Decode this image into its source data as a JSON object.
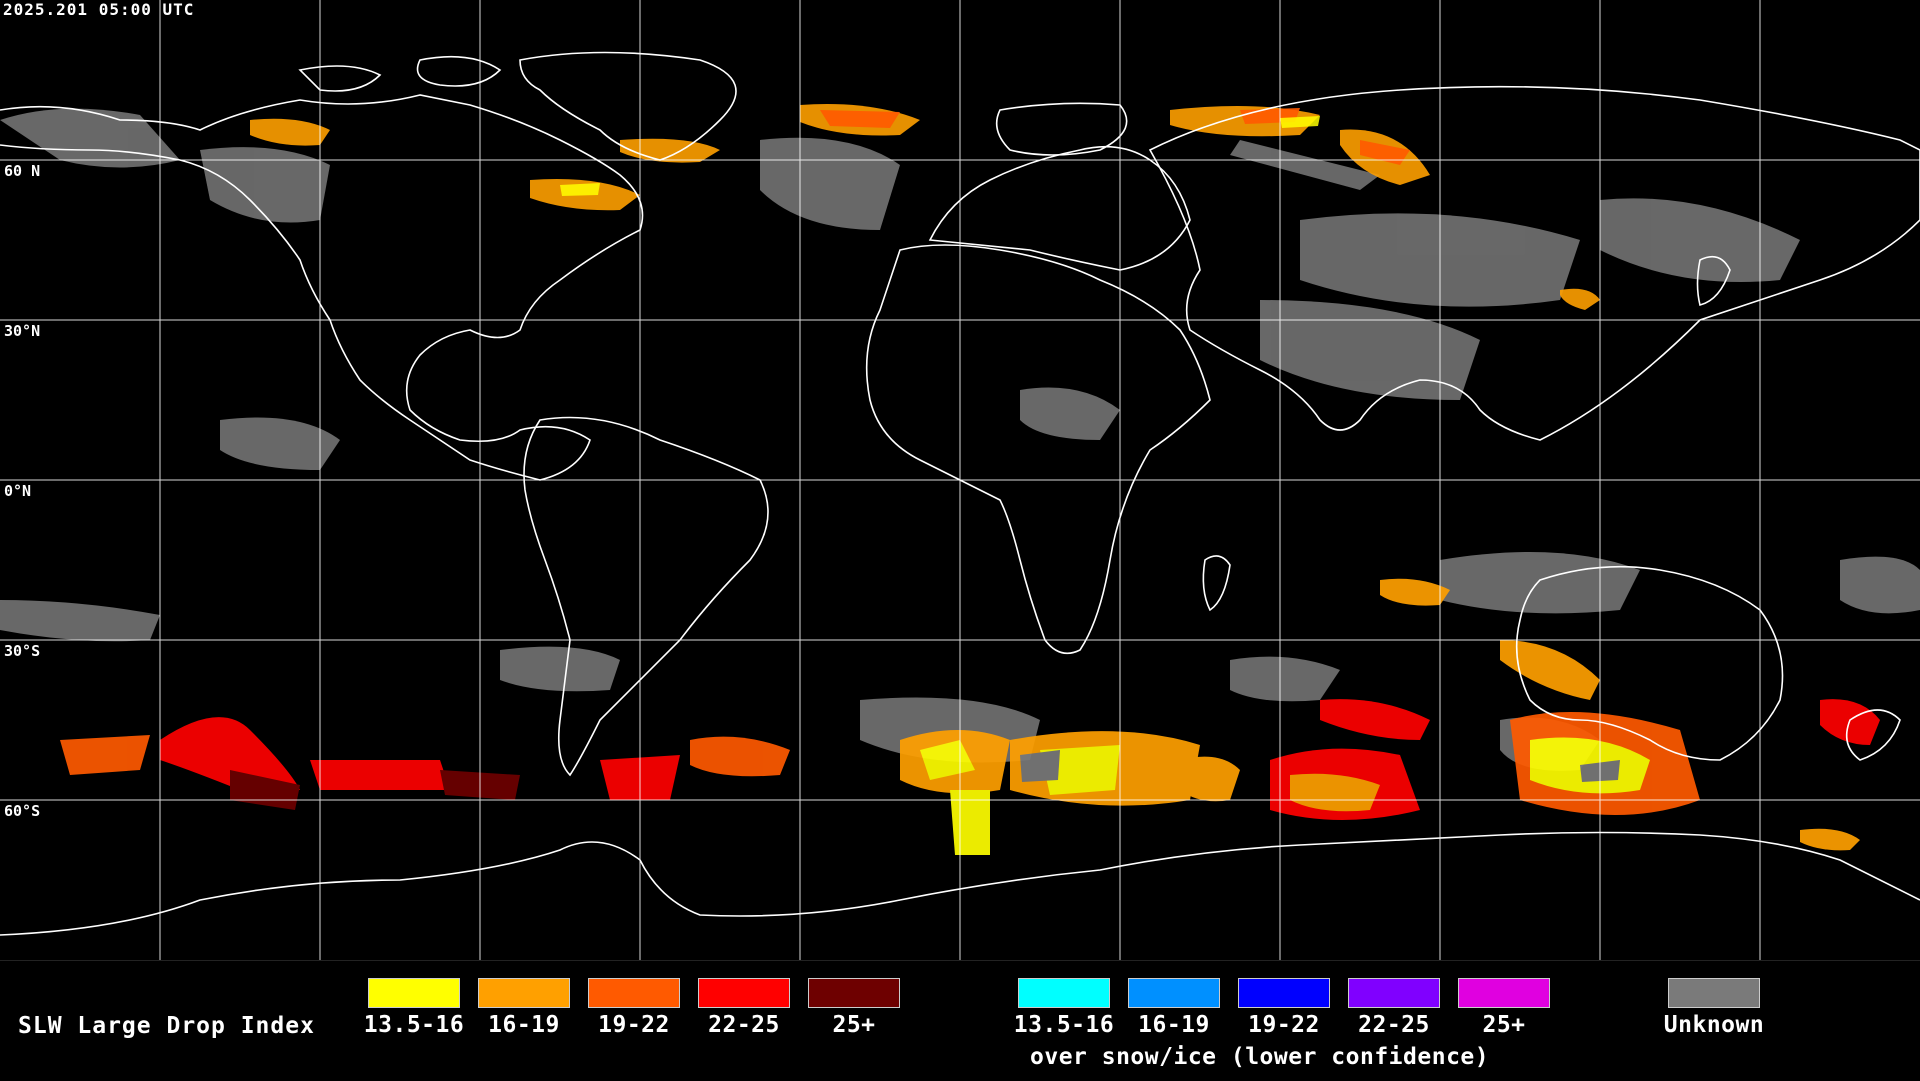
{
  "timestamp": "2025.201 05:00 UTC",
  "lat_labels": [
    "60 N",
    "30°N",
    "0°N",
    "30°S",
    "60°S"
  ],
  "legend": {
    "title": "SLW Large Drop Index",
    "main": [
      {
        "label": "13.5-16",
        "color": "#ffff00"
      },
      {
        "label": "16-19",
        "color": "#ffa000"
      },
      {
        "label": "19-22",
        "color": "#ff5a00"
      },
      {
        "label": "22-25",
        "color": "#ff0000"
      },
      {
        "label": "25+",
        "color": "#6e0000"
      }
    ],
    "snow": [
      {
        "label": "13.5-16",
        "color": "#00ffff"
      },
      {
        "label": "16-19",
        "color": "#0090ff"
      },
      {
        "label": "19-22",
        "color": "#0000ff"
      },
      {
        "label": "22-25",
        "color": "#8000ff"
      },
      {
        "label": "25+",
        "color": "#e000e0"
      }
    ],
    "snow_note": "over snow/ice (lower confidence)",
    "unknown": {
      "label": "Unknown",
      "color": "#7a7a7a"
    }
  },
  "colors": {
    "background": "#000000",
    "grid": "#ffffff",
    "coast": "#ffffff"
  }
}
